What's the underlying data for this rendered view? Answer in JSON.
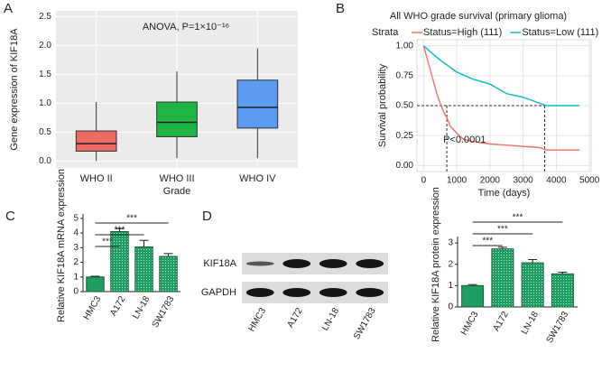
{
  "chart_data": [
    {
      "type": "box",
      "label": "A",
      "annotation": "ANOVA, P=1×10⁻¹⁶",
      "ylabel": "Gene expression of KIF18A",
      "xlabel": "Grade",
      "categories": [
        "WHO II",
        "WHO III",
        "WHO IV"
      ],
      "boxes": [
        {
          "whisker_low": 0.0,
          "q1": 0.17,
          "median": 0.3,
          "q3": 0.52,
          "whisker_high": 1.02
        },
        {
          "whisker_low": 0.05,
          "q1": 0.42,
          "median": 0.67,
          "q3": 1.02,
          "whisker_high": 1.55
        },
        {
          "whisker_low": 0.05,
          "q1": 0.57,
          "median": 0.93,
          "q3": 1.4,
          "whisker_high": 1.95
        }
      ],
      "colors": [
        "#ee6a62",
        "#1fb545",
        "#5b9cf2"
      ],
      "ylim": [
        -0.12,
        2.6
      ],
      "yticks": [
        {
          "value": 0,
          "label": "0.0"
        },
        0.5,
        {
          "value": 1,
          "label": "1.0"
        },
        1.5,
        {
          "value": 2,
          "label": "2.0"
        },
        2.5
      ],
      "grid": true
    },
    {
      "type": "line",
      "label": "B",
      "title": "All WHO grade survival (primary glioma)",
      "legend_title": "Strata",
      "xlabel": "Time (days)",
      "ylabel": "Survival probability",
      "annotation": "P<0.0001",
      "series": [
        {
          "name": "Status=High (111)",
          "color": "#f0776d",
          "x": [
            0,
            100,
            200,
            300,
            400,
            500,
            600,
            700,
            800,
            1000,
            1200,
            1500,
            2000,
            2500,
            3000,
            3500,
            3700,
            4000,
            4700
          ],
          "values": [
            1,
            0.9,
            0.8,
            0.7,
            0.6,
            0.52,
            0.45,
            0.4,
            0.33,
            0.27,
            0.22,
            0.2,
            0.18,
            0.17,
            0.16,
            0.15,
            0.13,
            0.13,
            0.13
          ]
        },
        {
          "name": "Status=Low (111)",
          "color": "#12bcc0",
          "x": [
            0,
            200,
            500,
            800,
            1000,
            1500,
            2000,
            2500,
            3000,
            3500,
            3700,
            4000,
            4700
          ],
          "values": [
            1,
            0.95,
            0.88,
            0.82,
            0.78,
            0.72,
            0.68,
            0.6,
            0.57,
            0.52,
            0.5,
            0.5,
            0.5
          ]
        }
      ],
      "reference_lines": [
        {
          "x": 700,
          "y": 0.5
        },
        {
          "x": 3650,
          "y": 0.5
        }
      ],
      "xlim": [
        -200,
        5050
      ],
      "xticks": [
        0,
        1000,
        2000,
        3000,
        4000,
        5000
      ],
      "ylim": [
        -0.05,
        1.05
      ],
      "yticks": [
        {
          "value": 0,
          "label": "0.00"
        },
        {
          "value": 0.25,
          "label": "0.25"
        },
        {
          "value": 0.5,
          "label": "0.50"
        },
        {
          "value": 0.75,
          "label": "0.75"
        },
        {
          "value": 1,
          "label": "1.00"
        }
      ],
      "grid": true
    },
    {
      "type": "bar",
      "label": "C",
      "ylabel": "Relative KIF18A mRNA expression",
      "categories": [
        "HMC3",
        "A172",
        "LN-18",
        "SW1783"
      ],
      "values": [
        1.0,
        4.1,
        3.05,
        2.4
      ],
      "errors": [
        0.05,
        0.2,
        0.45,
        0.2
      ],
      "significance": [
        "***",
        "***",
        "***"
      ],
      "color": "#1f9e62",
      "ylim": [
        0,
        5.3
      ],
      "yticks": [
        0,
        1,
        2,
        3,
        4,
        5
      ]
    },
    {
      "type": "bar",
      "label": "D",
      "ylabel": "Relative KIF18A protein expression",
      "blot": {
        "rows": [
          "KIF18A",
          "GAPDH"
        ],
        "lanes": [
          "HMC3",
          "A172",
          "LN-18",
          "SW1783"
        ]
      },
      "categories": [
        "HMC3",
        "A172",
        "LN-18",
        "SW1783"
      ],
      "values": [
        1.0,
        2.72,
        2.07,
        1.55
      ],
      "errors": [
        0.05,
        0.08,
        0.15,
        0.08
      ],
      "significance": [
        "***",
        "***",
        "***"
      ],
      "color": "#1f9e62",
      "ylim": [
        0,
        3.3
      ],
      "yticks": [
        0,
        1,
        2,
        3
      ]
    }
  ]
}
